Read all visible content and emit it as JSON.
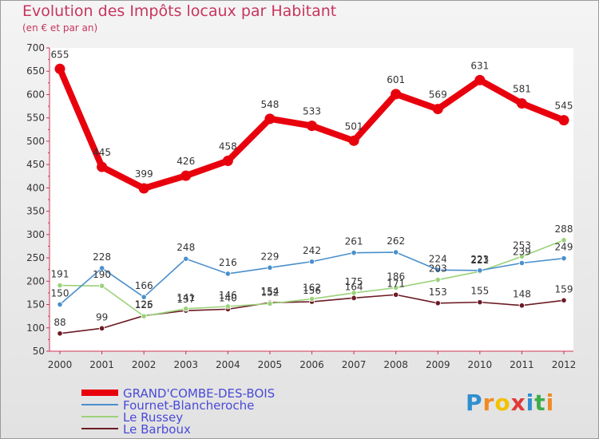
{
  "title": "Evolution des Impôts locaux par Habitant",
  "subtitle": "(en € et par an)",
  "chart_data": {
    "type": "line",
    "title": "Evolution des Impôts locaux par Habitant",
    "ylabel": "(en € et par an)",
    "xlabel": "",
    "ylim": [
      50,
      700
    ],
    "yticks": [
      "700",
      "650",
      "600",
      "550",
      "500",
      "450",
      "400",
      "350",
      "300",
      "250",
      "200",
      "150",
      "100",
      "50"
    ],
    "grid": false,
    "legend_position": "bottom-left",
    "x": [
      "2000",
      "2001",
      "2002",
      "2003",
      "2004",
      "2005",
      "2006",
      "2007",
      "2008",
      "2009",
      "2010",
      "2011",
      "2012"
    ],
    "series": [
      {
        "name": "Le Barboux",
        "color": "#6b1b24",
        "values": [
          88,
          99,
          126,
          137,
          140,
          154,
          156,
          164,
          171,
          153,
          155,
          148,
          159
        ],
        "labels": [
          "88",
          "99",
          "126",
          "137",
          "140",
          "154",
          "156",
          "164",
          "171",
          "153",
          "155",
          "148",
          "159"
        ]
      },
      {
        "name": "Le Russey",
        "color": "#9bd27a",
        "values": [
          191,
          190,
          125,
          141,
          146,
          152,
          162,
          175,
          186,
          203,
          221,
          253,
          288
        ],
        "labels": [
          "191",
          "190",
          "125",
          "141",
          "146",
          "152",
          "162",
          "175",
          "186",
          "203",
          "221",
          "253",
          "288"
        ]
      },
      {
        "name": "Fournet-Blancheroche",
        "color": "#4a8fcc",
        "values": [
          150,
          228,
          166,
          248,
          216,
          229,
          242,
          261,
          262,
          224,
          223,
          239,
          249
        ],
        "labels": [
          "150",
          "228",
          "166",
          "248",
          "216",
          "229",
          "242",
          "261",
          "262",
          "224",
          "223",
          "239",
          "249"
        ]
      },
      {
        "name": "GRAND'COMBE-DES-BOIS",
        "color": "#e8000d",
        "values": [
          655,
          445,
          399,
          426,
          458,
          548,
          533,
          501,
          601,
          569,
          631,
          581,
          545
        ],
        "labels": [
          "655",
          "445",
          "399",
          "426",
          "458",
          "548",
          "533",
          "501",
          "601",
          "569",
          "631",
          "581",
          "545"
        ]
      }
    ]
  },
  "legend": [
    {
      "label": "GRAND'COMBE-DES-BOIS",
      "color": "#e8000d"
    },
    {
      "label": "Fournet-Blancheroche",
      "color": "#4a8fcc"
    },
    {
      "label": "Le Russey",
      "color": "#9bd27a"
    },
    {
      "label": "Le Barboux",
      "color": "#6b1b24"
    }
  ],
  "logo": {
    "text": "Proxiti",
    "letters": [
      "P",
      "r",
      "o",
      "x",
      "i",
      "t",
      "i"
    ],
    "colors": [
      "#2f8fd0",
      "#f08a24",
      "#f2c200",
      "#e03a3a",
      "#2f8fd0",
      "#3cae4a",
      "#f08a24"
    ]
  }
}
